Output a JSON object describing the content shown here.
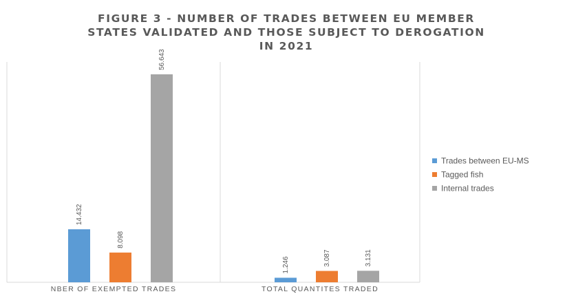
{
  "chart_data": {
    "type": "bar",
    "title_lines": [
      "FIGURE 3 - NUMBER OF TRADES BETWEEN EU MEMBER",
      "STATES VALIDATED AND THOSE SUBJECT TO DEROGATION",
      "IN 2021"
    ],
    "categories": [
      "NBER OF EXEMPTED TRADES",
      "TOTAL QUANTITES TRADED"
    ],
    "series": [
      {
        "name": "Trades between EU-MS",
        "color": "#5b9bd5",
        "values": [
          14432,
          1246
        ],
        "labels": [
          "14.432",
          "1.246"
        ]
      },
      {
        "name": "Tagged fish",
        "color": "#ed7d31",
        "values": [
          8098,
          3087
        ],
        "labels": [
          "8.098",
          "3.087"
        ]
      },
      {
        "name": "Internal trades",
        "color": "#a5a5a5",
        "values": [
          56643,
          3131
        ],
        "labels": [
          "56.643",
          "3.131"
        ]
      }
    ],
    "ylim": [
      0,
      60000
    ],
    "grid": false,
    "legend_position": "right"
  }
}
